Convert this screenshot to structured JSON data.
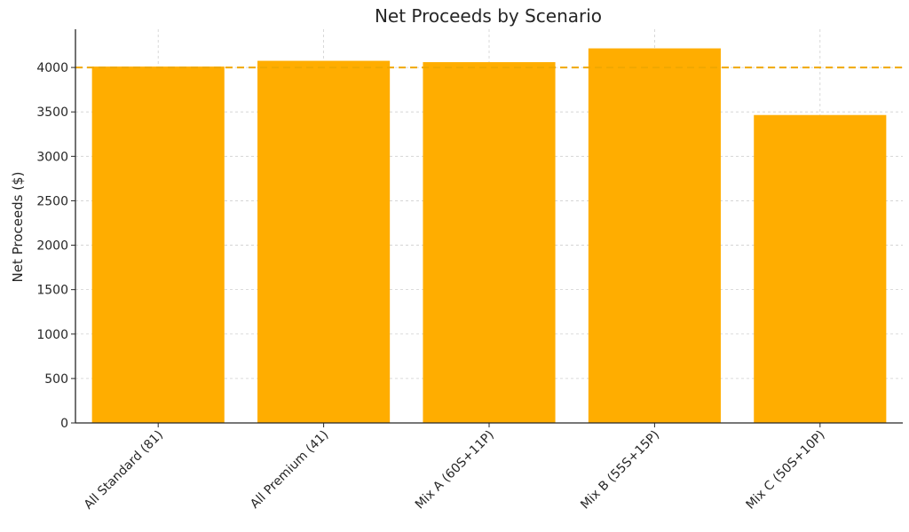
{
  "chart_data": {
    "type": "bar",
    "title": "Net Proceeds by Scenario",
    "xlabel": "",
    "ylabel": "Net Proceeds ($)",
    "categories": [
      "All Standard (81)",
      "All Premium (41)",
      "Mix A (60S+11P)",
      "Mix B (55S+15P)",
      "Mix C (50S+10P)"
    ],
    "values": [
      4010,
      4075,
      4060,
      4215,
      3465
    ],
    "ylim": [
      0,
      4430
    ],
    "yticks": [
      0,
      500,
      1000,
      1500,
      2000,
      2500,
      3000,
      3500,
      4000
    ],
    "reference_line": {
      "value": 4000,
      "style": "dashed",
      "color": "#f0a800"
    },
    "bar_color": "#ffad00",
    "grid": true
  }
}
